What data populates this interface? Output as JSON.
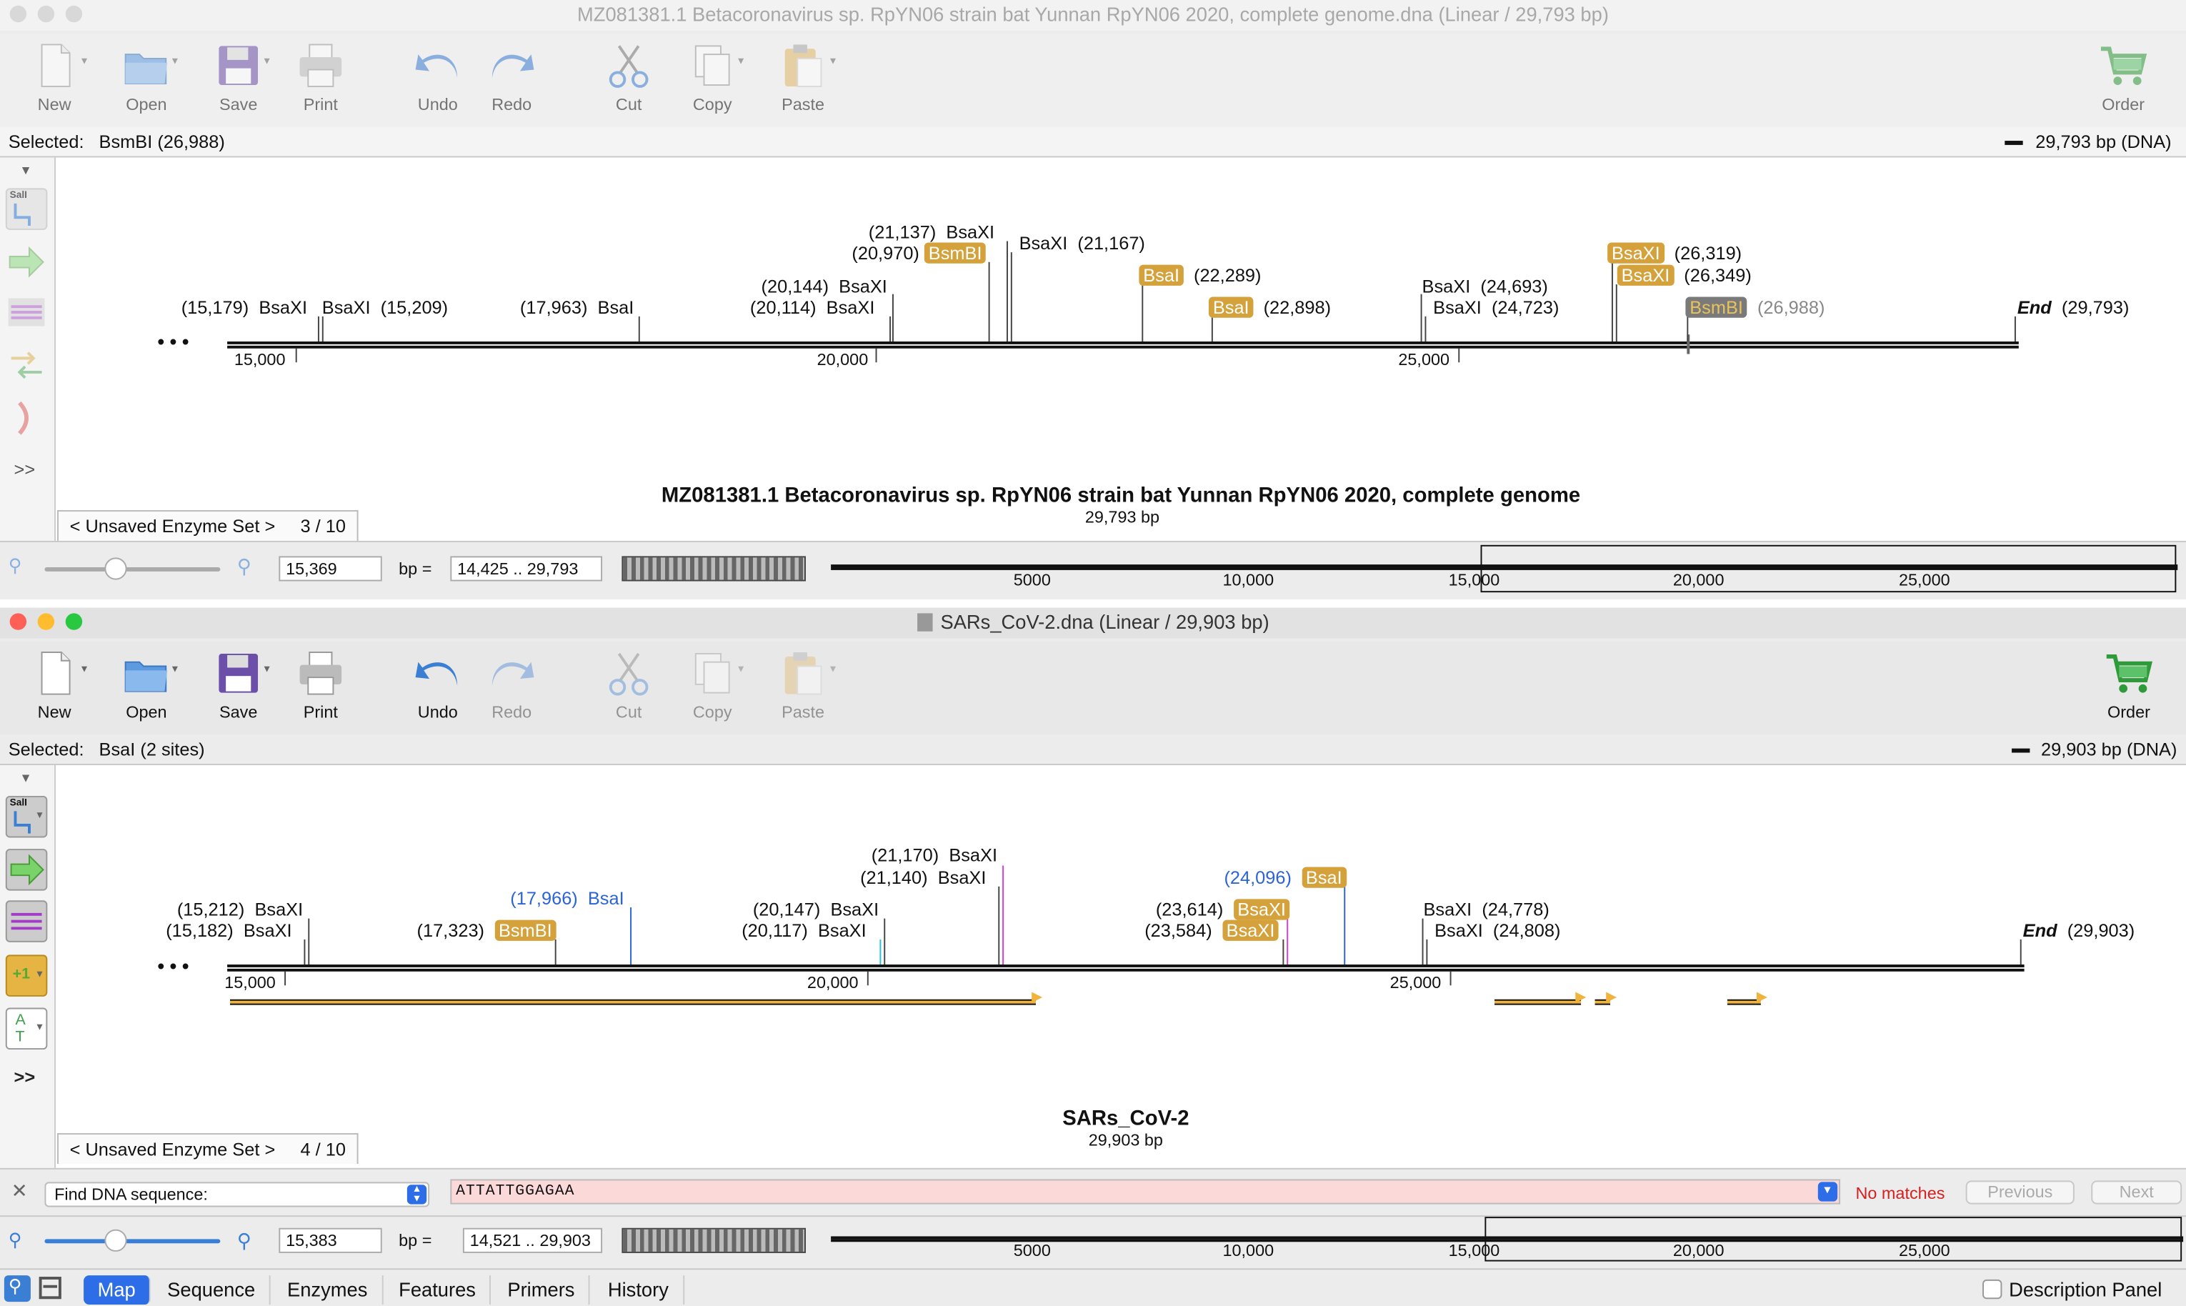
{
  "window1": {
    "title": "MZ081381.1 Betacoronavirus sp. RpYN06 strain bat Yunnan RpYN06 2020, complete genome.dna  (Linear / 29,793 bp)",
    "toolbar": {
      "new": "New",
      "open": "Open",
      "save": "Save",
      "print": "Print",
      "undo": "Undo",
      "redo": "Redo",
      "cut": "Cut",
      "copy": "Copy",
      "paste": "Paste",
      "order": "Order"
    },
    "selected_label": "Selected:",
    "selected_value": "BsmBI  (26,988)",
    "length": "29,793 bp  (DNA)",
    "map": {
      "dots": "• • •",
      "end_label": "End",
      "end_pos": "(29,793)",
      "ticks": [
        "15,000",
        "20,000",
        "25,000"
      ],
      "name": "MZ081381.1 Betacoronavirus sp. RpYN06 strain bat Yunnan RpYN06 2020, complete genome",
      "bp": "29,793 bp",
      "sites": [
        {
          "pos": "(15,179)",
          "enzyme": "BsaXI"
        },
        {
          "pos": "(15,209)",
          "enzyme": "BsaXI"
        },
        {
          "pos": "(17,963)",
          "enzyme": "BsaI"
        },
        {
          "pos": "(20,114)",
          "enzyme": "BsaXI"
        },
        {
          "pos": "(20,144)",
          "enzyme": "BsaXI"
        },
        {
          "pos": "(20,970)",
          "enzyme": "BsmBI"
        },
        {
          "pos": "(21,137)",
          "enzyme": "BsaXI"
        },
        {
          "pos": "(21,167)",
          "enzyme": "BsaXI"
        },
        {
          "pos": "(22,289)",
          "enzyme": "BsaI"
        },
        {
          "pos": "(22,898)",
          "enzyme": "BsaI"
        },
        {
          "pos": "(24,693)",
          "enzyme": "BsaXI"
        },
        {
          "pos": "(24,723)",
          "enzyme": "BsaXI"
        },
        {
          "pos": "(26,319)",
          "enzyme": "BsaXI"
        },
        {
          "pos": "(26,349)",
          "enzyme": "BsaXI"
        },
        {
          "pos": "(26,988)",
          "enzyme": "BsmBI"
        }
      ]
    },
    "enzyme_set": "< Unsaved Enzyme Set >",
    "enzyme_set_count": "3 / 10",
    "zoom_value": "15,369",
    "bp_eq": "bp  =",
    "range": "14,425  ..  29,793",
    "overview_ticks": [
      "5000",
      "10,000",
      "15,000",
      "20,000",
      "25,000"
    ]
  },
  "window2": {
    "title": "SARs_CoV-2.dna  (Linear / 29,903 bp)",
    "toolbar": {
      "new": "New",
      "open": "Open",
      "save": "Save",
      "print": "Print",
      "undo": "Undo",
      "redo": "Redo",
      "cut": "Cut",
      "copy": "Copy",
      "paste": "Paste",
      "order": "Order"
    },
    "selected_label": "Selected:",
    "selected_value": "BsaI  (2 sites)",
    "length": "29,903 bp  (DNA)",
    "map": {
      "dots": "• • •",
      "end_label": "End",
      "end_pos": "(29,903)",
      "ticks": [
        "15,000",
        "20,000",
        "25,000"
      ],
      "name": "SARs_CoV-2",
      "bp": "29,903 bp",
      "sites": [
        {
          "pos": "(15,212)",
          "enzyme": "BsaXI"
        },
        {
          "pos": "(15,182)",
          "enzyme": "BsaXI"
        },
        {
          "pos": "(17,323)",
          "enzyme": "BsmBI"
        },
        {
          "pos": "(17,966)",
          "enzyme": "BsaI"
        },
        {
          "pos": "(20,147)",
          "enzyme": "BsaXI"
        },
        {
          "pos": "(20,117)",
          "enzyme": "BsaXI"
        },
        {
          "pos": "(21,170)",
          "enzyme": "BsaXI"
        },
        {
          "pos": "(21,140)",
          "enzyme": "BsaXI"
        },
        {
          "pos": "(24,096)",
          "enzyme": "BsaI"
        },
        {
          "pos": "(23,614)",
          "enzyme": "BsaXI"
        },
        {
          "pos": "(23,584)",
          "enzyme": "BsaXI"
        },
        {
          "pos": "(24,778)",
          "enzyme": "BsaXI"
        },
        {
          "pos": "(24,808)",
          "enzyme": "BsaXI"
        }
      ]
    },
    "enzyme_set": "< Unsaved Enzyme Set >",
    "enzyme_set_count": "4 / 10",
    "find_label": "Find DNA sequence:",
    "find_value": "ATTATTGGAGAA",
    "no_matches": "No matches",
    "previous": "Previous",
    "next": "Next",
    "zoom_value": "15,383",
    "bp_eq": "bp  =",
    "range": "14,521  ..  29,903",
    "overview_ticks": [
      "5000",
      "10,000",
      "15,000",
      "20,000",
      "25,000"
    ]
  },
  "tabs": [
    "Map",
    "Sequence",
    "Enzymes",
    "Features",
    "Primers",
    "History"
  ],
  "description_panel": "Description Panel",
  "left_tools": {
    "more": ">>",
    "sall": "SalI",
    "frame": "+1",
    "at": "A T"
  },
  "colors": {
    "accent": "#2d6ee8",
    "enzyme": "#d4a13b",
    "blue_site": "#2b64d8",
    "no_match": "#d62020",
    "feature_arrow": "#f0b33c"
  }
}
